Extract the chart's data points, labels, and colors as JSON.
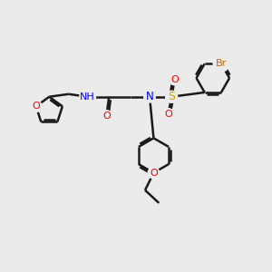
{
  "bg_color": "#ebebeb",
  "bond_color": "#1a1a1a",
  "bond_width": 1.8,
  "dbo": 0.07,
  "atom_colors": {
    "O": "#ff0000",
    "N": "#0000ff",
    "S": "#ccaa00",
    "Br": "#cc6600",
    "H_color": "#008888",
    "C": "#1a1a1a"
  },
  "figsize": [
    3.0,
    3.0
  ],
  "dpi": 100
}
